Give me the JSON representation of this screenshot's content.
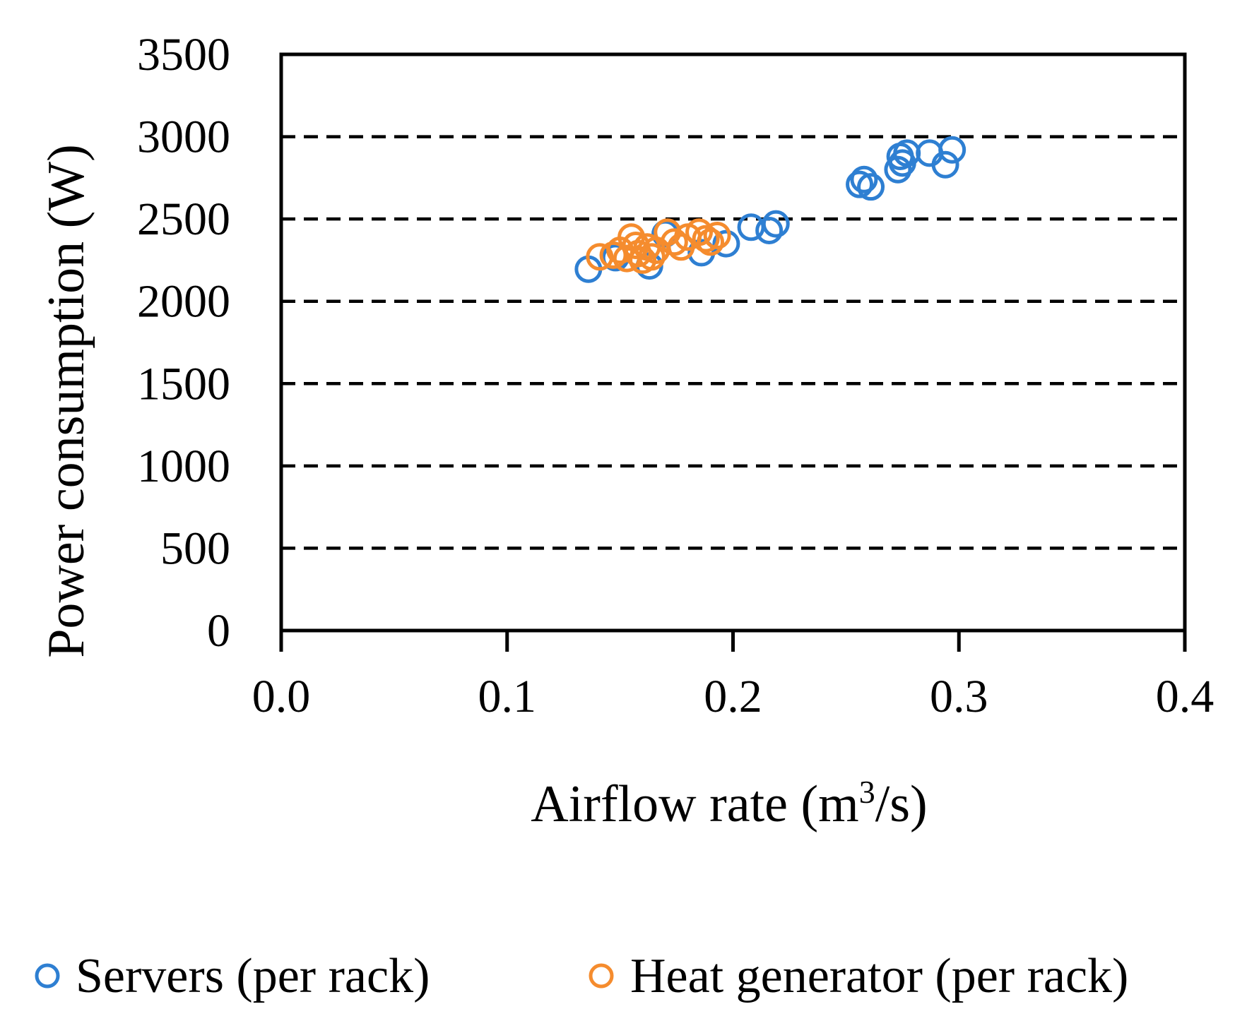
{
  "chart_data": {
    "type": "scatter",
    "title": "",
    "xlabel_main": "Airflow rate (m",
    "xlabel_sup": "3",
    "xlabel_tail": "/s)",
    "ylabel": "Power consumption (W)",
    "xlim": [
      0.0,
      0.4
    ],
    "ylim": [
      0,
      3500
    ],
    "x_ticks": [
      "0.0",
      "0.1",
      "0.2",
      "0.3",
      "0.4"
    ],
    "y_ticks": [
      "0",
      "500",
      "1000",
      "1500",
      "2000",
      "2500",
      "3000",
      "3500"
    ],
    "grid": "horizontal dashed",
    "legend_position": "bottom",
    "series": [
      {
        "name": "Servers (per rack)",
        "color": "#2e7fd2",
        "marker": "open-circle",
        "points": [
          [
            0.136,
            2195
          ],
          [
            0.148,
            2265
          ],
          [
            0.163,
            2215
          ],
          [
            0.17,
            2410
          ],
          [
            0.186,
            2295
          ],
          [
            0.197,
            2350
          ],
          [
            0.208,
            2450
          ],
          [
            0.216,
            2430
          ],
          [
            0.219,
            2470
          ],
          [
            0.256,
            2710
          ],
          [
            0.258,
            2740
          ],
          [
            0.261,
            2695
          ],
          [
            0.273,
            2800
          ],
          [
            0.274,
            2880
          ],
          [
            0.275,
            2840
          ],
          [
            0.277,
            2900
          ],
          [
            0.287,
            2900
          ],
          [
            0.294,
            2830
          ],
          [
            0.297,
            2920
          ]
        ]
      },
      {
        "name": "Heat generator (per rack)",
        "color": "#f58c2e",
        "marker": "open-circle",
        "points": [
          [
            0.141,
            2270
          ],
          [
            0.147,
            2280
          ],
          [
            0.15,
            2310
          ],
          [
            0.153,
            2260
          ],
          [
            0.155,
            2390
          ],
          [
            0.157,
            2340
          ],
          [
            0.158,
            2290
          ],
          [
            0.16,
            2250
          ],
          [
            0.162,
            2330
          ],
          [
            0.164,
            2270
          ],
          [
            0.166,
            2310
          ],
          [
            0.171,
            2420
          ],
          [
            0.174,
            2360
          ],
          [
            0.177,
            2330
          ],
          [
            0.18,
            2390
          ],
          [
            0.185,
            2420
          ],
          [
            0.188,
            2380
          ],
          [
            0.19,
            2360
          ],
          [
            0.193,
            2400
          ]
        ]
      }
    ]
  }
}
